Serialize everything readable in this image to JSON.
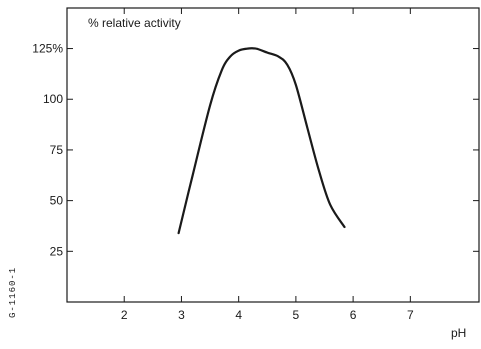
{
  "chart_data": {
    "type": "line",
    "ylabel": "% relative activity",
    "xlabel": "pH",
    "xlim": [
      1,
      8.2
    ],
    "ylim": [
      0,
      145
    ],
    "x_ticks": [
      2,
      3,
      4,
      5,
      6,
      7
    ],
    "x_tick_labels": [
      "2",
      "3",
      "4",
      "5",
      "6",
      "7"
    ],
    "y_ticks": [
      25,
      50,
      75,
      100,
      125
    ],
    "y_tick_labels": [
      "25",
      "50",
      "75",
      "100",
      "125%"
    ],
    "grid": false,
    "series": [
      {
        "x": [
          2.95,
          3.2,
          3.5,
          3.7,
          3.85,
          4.0,
          4.15,
          4.3,
          4.5,
          4.7,
          4.85,
          5.0,
          5.2,
          5.4,
          5.6,
          5.85
        ],
        "y": [
          34,
          63,
          97,
          114,
          121,
          124,
          125,
          125,
          123,
          121,
          117,
          107,
          86,
          65,
          48,
          37
        ],
        "color": "#1a1a1a"
      }
    ],
    "side_code": "G-1160-1"
  }
}
